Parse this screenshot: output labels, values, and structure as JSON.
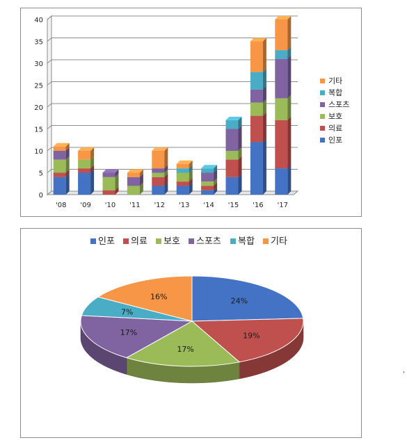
{
  "colors": {
    "인포": "#4472C4",
    "의료": "#C0504D",
    "보호": "#9BBB59",
    "스포츠": "#8064A2",
    "복합": "#4BACC6",
    "기타": "#F79646"
  },
  "chart_data": [
    {
      "type": "bar",
      "stacked": true,
      "three_d": true,
      "categories": [
        "'08",
        "'09",
        "'10",
        "'11",
        "'12",
        "'13",
        "'14",
        "'15",
        "'16",
        "'17"
      ],
      "series": [
        {
          "name": "인포",
          "values": [
            4,
            5,
            0,
            0,
            2,
            2,
            1,
            4,
            12,
            6
          ]
        },
        {
          "name": "의료",
          "values": [
            1,
            1,
            1,
            0,
            2,
            1,
            1,
            4,
            6,
            11
          ]
        },
        {
          "name": "보호",
          "values": [
            3,
            2,
            3,
            2,
            1,
            2,
            1,
            2,
            3,
            5
          ]
        },
        {
          "name": "스포츠",
          "values": [
            2,
            0,
            1,
            2,
            1,
            0,
            2,
            5,
            3,
            9
          ]
        },
        {
          "name": "복합",
          "values": [
            0,
            0,
            0,
            0,
            0,
            1,
            1,
            2,
            4,
            2
          ]
        },
        {
          "name": "기타",
          "values": [
            1,
            2,
            0,
            1,
            4,
            1,
            0,
            0,
            7,
            7
          ]
        }
      ],
      "y_ticks": [
        "0",
        "5",
        "10",
        "15",
        "20",
        "25",
        "30",
        "35",
        "40"
      ],
      "ylim": [
        0,
        40
      ],
      "grid": true,
      "legend_position": "right",
      "title": "",
      "xlabel": "",
      "ylabel": ""
    },
    {
      "type": "pie",
      "three_d": true,
      "labels": [
        "인포",
        "의료",
        "보호",
        "스포츠",
        "복합",
        "기타"
      ],
      "values": [
        24,
        19,
        17,
        17,
        7,
        16
      ],
      "data_labels": [
        "24%",
        "19%",
        "17%",
        "17%",
        "7%",
        "16%"
      ],
      "legend_position": "top",
      "title": ""
    }
  ],
  "stray_mark": "'"
}
